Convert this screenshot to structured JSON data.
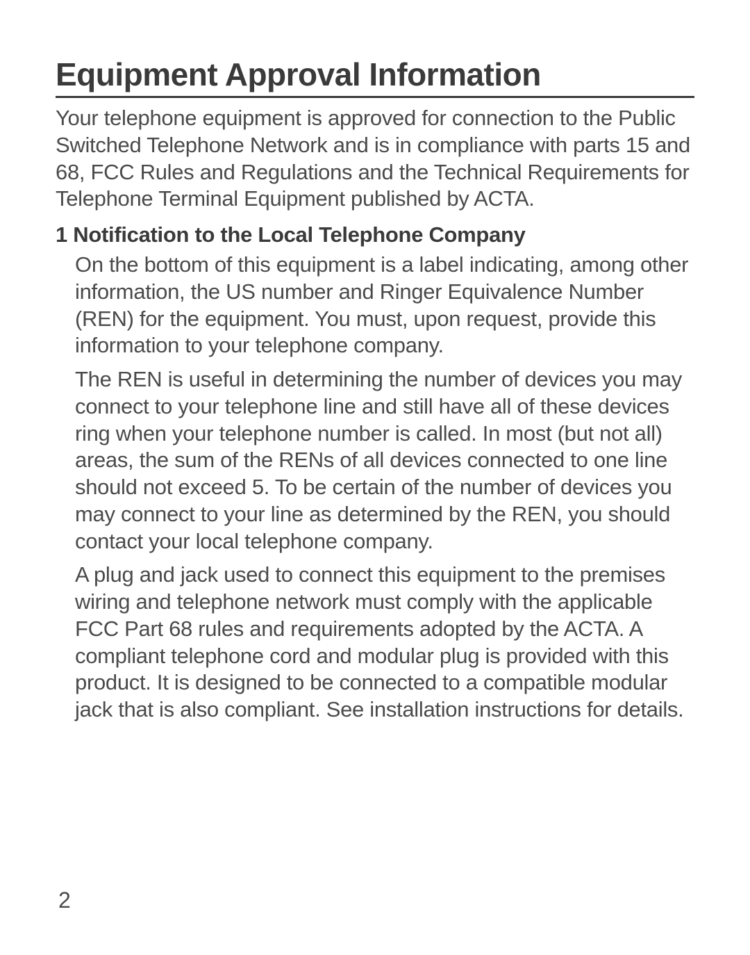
{
  "page": {
    "title": "Equipment Approval Information",
    "intro": "Your telephone equipment is approved for connection to the Public Switched Telephone Network and is in compliance with parts 15 and 68, FCC Rules and Regulations and the Technical Requirements for Telephone Terminal Equipment published by ACTA.",
    "section1": {
      "heading": "1 Notification to the Local Telephone Company",
      "para1": "On the bottom of this equipment is a label indicating, among other information, the US number and Ringer Equivalence Number (REN) for the equipment. You must, upon request, provide this information to your telephone company.",
      "para2": "The REN is useful in determining the number of devices you may connect to your telephone line and still have all of these devices ring when your telephone number is called. In most (but not all) areas, the sum of the RENs of all devices connected to one line should not exceed 5. To be certain of the number of devices you may connect to your line as determined by the REN, you should contact your local telephone company.",
      "para3": "A plug and jack used to connect this equipment to the premises wiring and telephone network must comply with the applicable FCC Part 68 rules and requirements adopted by the ACTA. A compliant telephone cord and modular plug is provided with this product. It is designed to be connected to a compatible modular jack that is also compliant. See installation instructions for details."
    },
    "page_number": "2"
  },
  "styles": {
    "background_color": "#ffffff",
    "text_color": "#4a4a4a",
    "heading_color": "#3a3a3a",
    "title_fontsize": 46,
    "body_fontsize": 31,
    "heading_fontsize": 31,
    "line_height": 1.25,
    "border_color": "#3a3a3a",
    "border_width": 3
  }
}
